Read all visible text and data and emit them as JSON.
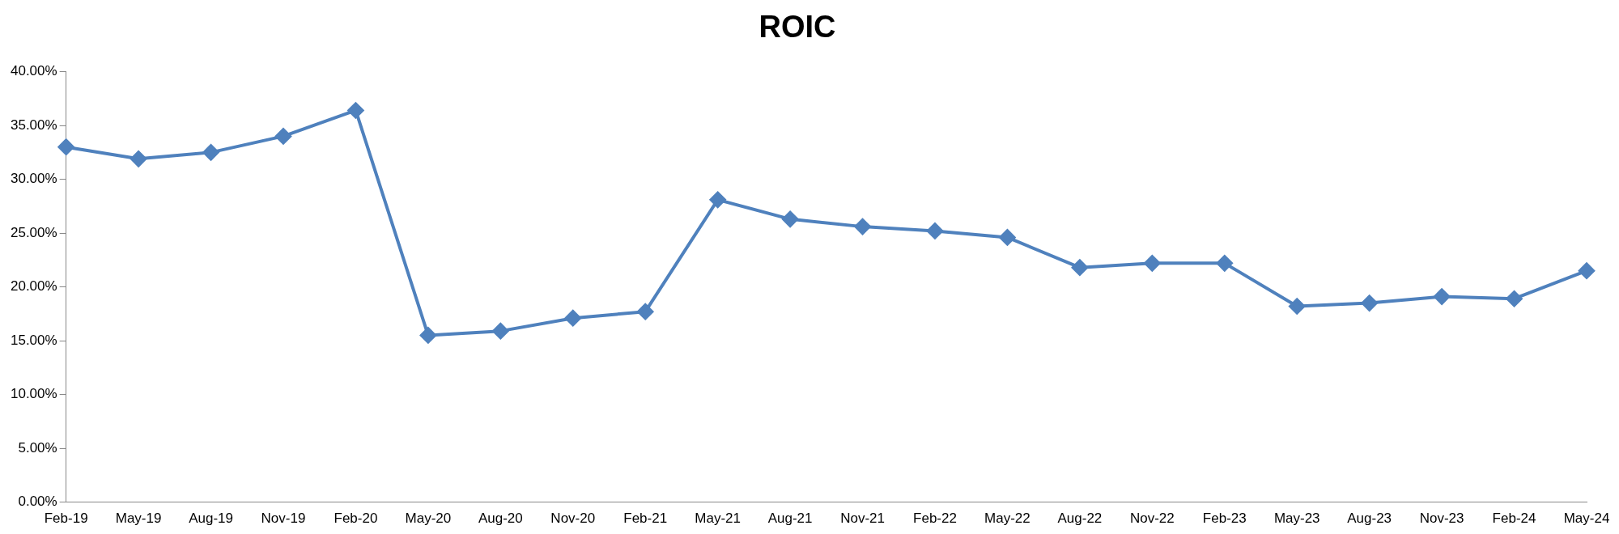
{
  "chart_data": {
    "type": "line",
    "title": "ROIC",
    "categories": [
      "Feb-19",
      "May-19",
      "Aug-19",
      "Nov-19",
      "Feb-20",
      "May-20",
      "Aug-20",
      "Nov-20",
      "Feb-21",
      "May-21",
      "Aug-21",
      "Nov-21",
      "Feb-22",
      "May-22",
      "Aug-22",
      "Nov-22",
      "Feb-23",
      "May-23",
      "Aug-23",
      "Nov-23",
      "Feb-24",
      "May-24"
    ],
    "series": [
      {
        "color": "#4f81bd",
        "values": [
          33.0,
          31.9,
          32.5,
          34.0,
          36.4,
          15.5,
          15.9,
          17.1,
          17.7,
          28.1,
          26.3,
          25.6,
          25.2,
          24.6,
          21.8,
          22.2,
          22.2,
          18.2,
          18.5,
          19.1,
          18.9,
          21.5
        ]
      }
    ],
    "ylim": [
      0,
      40
    ],
    "yticks": [
      {
        "value": 0,
        "label": "0.00%"
      },
      {
        "value": 5,
        "label": "5.00%"
      },
      {
        "value": 10,
        "label": "10.00%"
      },
      {
        "value": 15,
        "label": "15.00%"
      },
      {
        "value": 20,
        "label": "20.00%"
      },
      {
        "value": 25,
        "label": "25.00%"
      },
      {
        "value": 30,
        "label": "30.00%"
      },
      {
        "value": 35,
        "label": "35.00%"
      },
      {
        "value": 40,
        "label": "40.00%"
      }
    ],
    "grid": false,
    "legend": false,
    "marker": "diamond",
    "line_style": "solid"
  }
}
